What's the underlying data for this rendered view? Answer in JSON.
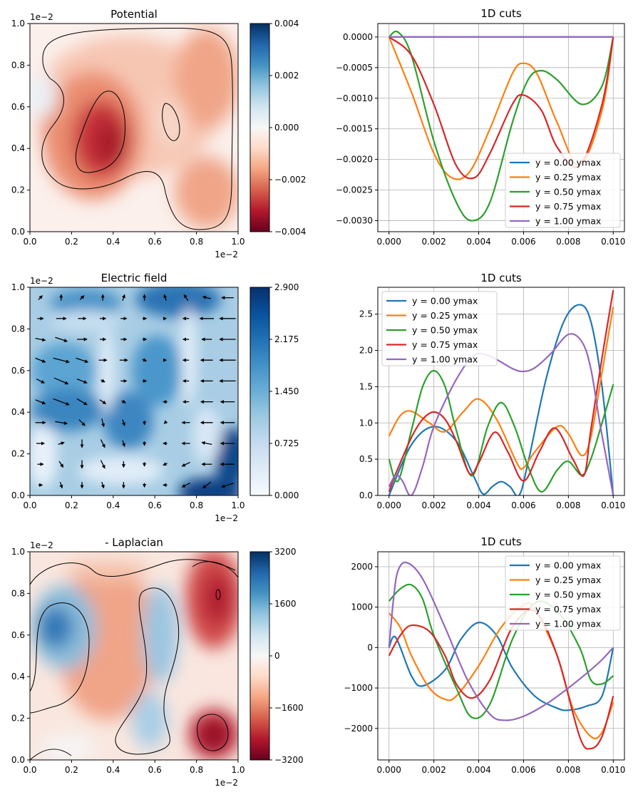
{
  "colors": {
    "series": [
      "#1f77b4",
      "#ff7f0e",
      "#2ca02c",
      "#d62728",
      "#9467bd"
    ],
    "rdbu": [
      "#67001f",
      "#b2182b",
      "#d6604d",
      "#f4a582",
      "#fddbc7",
      "#f7f7f7",
      "#d1e5f0",
      "#92c5de",
      "#4393c3",
      "#2166ac",
      "#053061"
    ],
    "blues": [
      "#f7fbff",
      "#deebf7",
      "#c6dbef",
      "#9ecae1",
      "#6baed6",
      "#4292c6",
      "#2171b5",
      "#08519c",
      "#08306b"
    ]
  },
  "chart_data": [
    {
      "type": "heatmap",
      "title": "Potential",
      "colormap": "RdBu",
      "x_ticks": [
        "0.0",
        "0.2",
        "0.4",
        "0.6",
        "0.8",
        "1.0"
      ],
      "y_ticks": [
        "0.0",
        "0.2",
        "0.4",
        "0.6",
        "0.8",
        "1.0"
      ],
      "x_offset_text": "1e−2",
      "y_offset_text": "1e−2",
      "colorbar_ticks": [
        "0.004",
        "0.002",
        "0.000",
        "−0.002",
        "−0.004"
      ],
      "colorbar_range": [
        -0.004,
        0.004
      ],
      "contours": true
    },
    {
      "type": "line",
      "title": "1D cuts",
      "x_ticks": [
        "0.000",
        "0.002",
        "0.004",
        "0.006",
        "0.008",
        "0.010"
      ],
      "y_ticks": [
        "0.0000",
        "−0.0005",
        "−0.0010",
        "−0.0015",
        "−0.0020",
        "−0.0025",
        "−0.0030"
      ],
      "xlim": [
        -0.0005,
        0.0105
      ],
      "ylim": [
        -0.00318,
        0.00022
      ],
      "grid": true,
      "legend": "lower-right",
      "series": [
        {
          "name": "y = 0.00 ymax",
          "x": [
            0,
            0.01
          ],
          "y": [
            0,
            0
          ]
        },
        {
          "name": "y = 0.25 ymax",
          "x": [
            0,
            0.001,
            0.002,
            0.0028,
            0.0036,
            0.0045,
            0.0055,
            0.006,
            0.0066,
            0.0075,
            0.0085,
            0.0095,
            0.01
          ],
          "y": [
            0,
            -0.0009,
            -0.0019,
            -0.0023,
            -0.0022,
            -0.0015,
            -0.0006,
            -0.00043,
            -0.0006,
            -0.0014,
            -0.0021,
            -0.0012,
            0
          ]
        },
        {
          "name": "y = 0.50 ymax",
          "x": [
            0,
            0.0004,
            0.001,
            0.002,
            0.003,
            0.0037,
            0.0045,
            0.0055,
            0.0062,
            0.0068,
            0.0075,
            0.0086,
            0.0095,
            0.01
          ],
          "y": [
            0,
            8e-05,
            -0.0003,
            -0.0017,
            -0.0027,
            -0.003,
            -0.0027,
            -0.0014,
            -0.0007,
            -0.00055,
            -0.0007,
            -0.0011,
            -0.0008,
            0
          ]
        },
        {
          "name": "y = 0.75 ymax",
          "x": [
            0,
            0.001,
            0.002,
            0.003,
            0.0038,
            0.0045,
            0.0055,
            0.006,
            0.0068,
            0.0075,
            0.0085,
            0.0095,
            0.01
          ],
          "y": [
            0,
            -0.0003,
            -0.0011,
            -0.0021,
            -0.0023,
            -0.0019,
            -0.0011,
            -0.00095,
            -0.0012,
            -0.0018,
            -0.0021,
            -0.0011,
            0
          ]
        },
        {
          "name": "y = 1.00 ymax",
          "x": [
            0,
            0.01
          ],
          "y": [
            0,
            0
          ]
        }
      ]
    },
    {
      "type": "heatmap",
      "title": "Electric field",
      "colormap": "Blues",
      "x_ticks": [
        "0.0",
        "0.2",
        "0.4",
        "0.6",
        "0.8",
        "1.0"
      ],
      "y_ticks": [
        "0.0",
        "0.2",
        "0.4",
        "0.6",
        "0.8",
        "1.0"
      ],
      "x_offset_text": "1e−2",
      "y_offset_text": "1e−2",
      "colorbar_ticks": [
        "2.900",
        "2.175",
        "1.450",
        "0.725",
        "0.000"
      ],
      "colorbar_range": [
        0,
        2.9
      ],
      "quiver": true
    },
    {
      "type": "line",
      "title": "1D cuts",
      "x_ticks": [
        "0.000",
        "0.002",
        "0.004",
        "0.006",
        "0.008",
        "0.010"
      ],
      "y_ticks": [
        "0.0",
        "0.5",
        "1.0",
        "1.5",
        "2.0",
        "2.5"
      ],
      "xlim": [
        -0.0005,
        0.0105
      ],
      "ylim": [
        0,
        2.87
      ],
      "grid": true,
      "legend": "upper-left",
      "series": [
        {
          "name": "y = 0.00 ymax",
          "x": [
            0,
            0.001,
            0.002,
            0.003,
            0.0038,
            0.0042,
            0.0046,
            0.005,
            0.0054,
            0.0058,
            0.0062,
            0.007,
            0.0078,
            0.0085,
            0.009,
            0.0095,
            0.01
          ],
          "y": [
            0,
            0.7,
            0.95,
            0.75,
            0.25,
            0.02,
            0.12,
            0.19,
            0.12,
            0.0,
            0.45,
            1.6,
            2.4,
            2.63,
            2.4,
            1.5,
            0
          ]
        },
        {
          "name": "y = 0.25 ymax",
          "x": [
            0,
            0.0005,
            0.001,
            0.0018,
            0.0025,
            0.0033,
            0.004,
            0.0048,
            0.0057,
            0.006,
            0.0065,
            0.0075,
            0.008,
            0.0086,
            0.009,
            0.0095,
            0.01
          ],
          "y": [
            0.82,
            1.1,
            1.16,
            1.0,
            0.88,
            1.15,
            1.33,
            1.05,
            0.45,
            0.38,
            0.6,
            0.95,
            0.85,
            0.55,
            0.8,
            1.7,
            2.6
          ]
        },
        {
          "name": "y = 0.50 ymax",
          "x": [
            0,
            0.0004,
            0.001,
            0.0015,
            0.002,
            0.0025,
            0.003,
            0.0037,
            0.0044,
            0.005,
            0.0056,
            0.0062,
            0.0068,
            0.0075,
            0.008,
            0.0086,
            0.009,
            0.0095,
            0.01
          ],
          "y": [
            0.5,
            0.2,
            0.9,
            1.5,
            1.72,
            1.5,
            0.9,
            0.27,
            0.95,
            1.28,
            0.95,
            0.4,
            0.05,
            0.35,
            0.47,
            0.28,
            0.5,
            1.0,
            1.53
          ]
        },
        {
          "name": "y = 0.75 ymax",
          "x": [
            0,
            0.0003,
            0.001,
            0.0015,
            0.002,
            0.0025,
            0.003,
            0.0036,
            0.004,
            0.0047,
            0.0053,
            0.006,
            0.0067,
            0.0074,
            0.0082,
            0.0087,
            0.009,
            0.0095,
            0.01
          ],
          "y": [
            0.05,
            0.3,
            0.8,
            1.05,
            1.15,
            1.05,
            0.75,
            0.3,
            0.45,
            0.87,
            0.6,
            0.2,
            0.6,
            0.93,
            0.5,
            0.28,
            0.9,
            1.9,
            2.83
          ]
        },
        {
          "name": "y = 1.00 ymax",
          "x": [
            0,
            0.0003,
            0.0006,
            0.001,
            0.0015,
            0.002,
            0.003,
            0.0038,
            0.0045,
            0.0055,
            0.006,
            0.0065,
            0.0072,
            0.008,
            0.0086,
            0.009,
            0.0094,
            0.0097,
            0.01
          ],
          "y": [
            0.12,
            0.28,
            0.2,
            0.0,
            0.4,
            0.95,
            1.6,
            1.93,
            1.92,
            1.75,
            1.71,
            1.76,
            1.95,
            2.22,
            2.12,
            1.75,
            1.0,
            0.5,
            0
          ]
        }
      ]
    },
    {
      "type": "heatmap",
      "title": "- Laplacian",
      "colormap": "RdBu",
      "x_ticks": [
        "0.0",
        "0.2",
        "0.4",
        "0.6",
        "0.8",
        "1.0"
      ],
      "y_ticks": [
        "0.0",
        "0.2",
        "0.4",
        "0.6",
        "0.8",
        "1.0"
      ],
      "x_offset_text": "1e−2",
      "y_offset_text": "1e−2",
      "colorbar_ticks": [
        "3200",
        "1600",
        "0",
        "−1600",
        "−3200"
      ],
      "colorbar_range": [
        -3200,
        3200
      ],
      "contours": true
    },
    {
      "type": "line",
      "title": "1D cuts",
      "x_ticks": [
        "0.000",
        "0.002",
        "0.004",
        "0.006",
        "0.008",
        "0.010"
      ],
      "y_ticks": [
        "2000",
        "1000",
        "0",
        "−1000",
        "−2000"
      ],
      "xlim": [
        -0.0005,
        0.0105
      ],
      "ylim": [
        -2780,
        2370
      ],
      "grid": true,
      "legend": "upper-right",
      "series": [
        {
          "name": "y = 0.00 ymax",
          "x": [
            0,
            0.0003,
            0.001,
            0.0015,
            0.0025,
            0.0032,
            0.004,
            0.0048,
            0.0055,
            0.0065,
            0.0075,
            0.008,
            0.0088,
            0.0095,
            0.01
          ],
          "y": [
            0,
            250,
            -700,
            -950,
            -550,
            200,
            620,
            300,
            -500,
            -1200,
            -1500,
            -1550,
            -1450,
            -1200,
            0
          ]
        },
        {
          "name": "y = 0.25 ymax",
          "x": [
            0,
            0.0005,
            0.001,
            0.0018,
            0.0025,
            0.003,
            0.004,
            0.005,
            0.006,
            0.0065,
            0.0075,
            0.0082,
            0.009,
            0.0095,
            0.01
          ],
          "y": [
            850,
            500,
            -200,
            -1000,
            -1280,
            -1200,
            -450,
            500,
            1050,
            950,
            -200,
            -1500,
            -2200,
            -2100,
            -1350
          ]
        },
        {
          "name": "y = 0.50 ymax",
          "x": [
            0,
            0.0005,
            0.001,
            0.0015,
            0.002,
            0.003,
            0.0037,
            0.0045,
            0.0055,
            0.0065,
            0.0075,
            0.0085,
            0.009,
            0.0095,
            0.01
          ],
          "y": [
            1150,
            1450,
            1550,
            1200,
            300,
            -1000,
            -1730,
            -1400,
            200,
            1100,
            900,
            0,
            -800,
            -900,
            -700
          ]
        },
        {
          "name": "y = 0.75 ymax",
          "x": [
            0,
            0.0005,
            0.001,
            0.0018,
            0.0025,
            0.003,
            0.0037,
            0.0045,
            0.0055,
            0.0065,
            0.0075,
            0.0085,
            0.009,
            0.0095,
            0.01
          ],
          "y": [
            -200,
            300,
            550,
            400,
            -200,
            -900,
            -1250,
            -800,
            500,
            900,
            -200,
            -2200,
            -2500,
            -2200,
            -1200
          ]
        },
        {
          "name": "y = 1.00 ymax",
          "x": [
            0,
            0.0002,
            0.0004,
            0.0008,
            0.0015,
            0.0025,
            0.0035,
            0.0045,
            0.0052,
            0.006,
            0.007,
            0.008,
            0.009,
            0.0095,
            0.01
          ],
          "y": [
            0,
            1200,
            1900,
            2100,
            1700,
            500,
            -800,
            -1650,
            -1800,
            -1700,
            -1400,
            -1000,
            -550,
            -300,
            0
          ]
        }
      ]
    }
  ]
}
